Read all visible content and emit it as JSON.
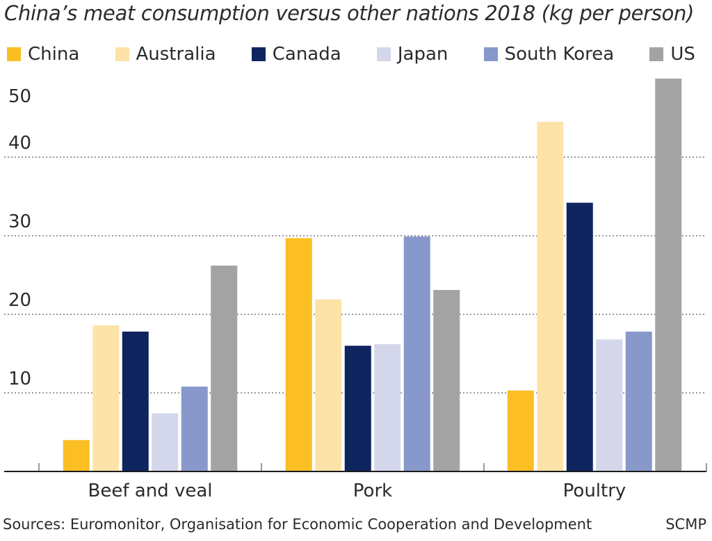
{
  "chart_data": {
    "type": "bar",
    "title": "China’s meat consumption versus other nations 2018 (kg per person)",
    "categories": [
      "Beef and veal",
      "Pork",
      "Poultry"
    ],
    "series": [
      {
        "name": "China",
        "color": "#fbbf24",
        "values": [
          4,
          29.7,
          10.3
        ]
      },
      {
        "name": "Australia",
        "color": "#fde3a7",
        "values": [
          18.6,
          21.9,
          44.5
        ]
      },
      {
        "name": "Canada",
        "color": "#0f2560",
        "values": [
          17.8,
          16,
          34.2
        ]
      },
      {
        "name": "Japan",
        "color": "#d4d7ec",
        "values": [
          7.4,
          16.2,
          16.8
        ]
      },
      {
        "name": "South Korea",
        "color": "#8898cb",
        "values": [
          10.8,
          29.9,
          17.8
        ]
      },
      {
        "name": "US",
        "color": "#a3a3a3",
        "values": [
          26.2,
          23.1,
          50
        ]
      }
    ],
    "yticks": [
      10,
      20,
      30,
      40,
      50
    ],
    "ylim": [
      0,
      50
    ],
    "xlabel": "",
    "ylabel": "",
    "grid": true
  },
  "footer": {
    "sources": "Sources: Euromonitor, Organisation for Economic Cooperation and Development",
    "brand": "SCMP"
  }
}
